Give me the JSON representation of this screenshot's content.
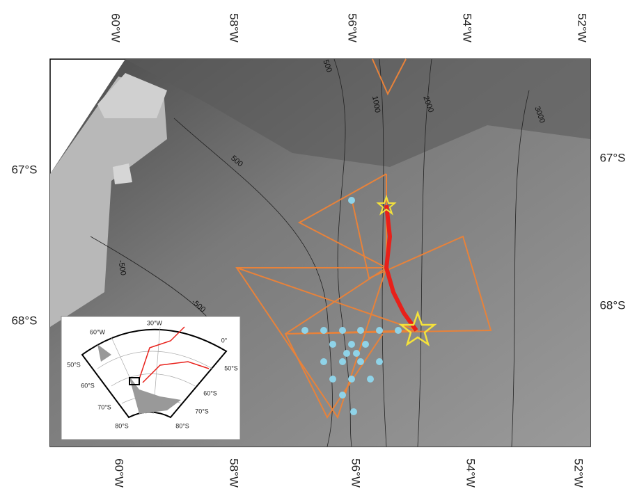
{
  "map": {
    "lon_labels_top": [
      "60°W",
      "58°W",
      "56°W",
      "54°W",
      "52°W"
    ],
    "lon_labels_bottom": [
      "60°W",
      "58°W",
      "56°W",
      "54°W",
      "52°W"
    ],
    "lat_labels_left": [
      "67°S",
      "68°S"
    ],
    "lat_labels_right": [
      "67°S",
      "68°S"
    ],
    "contour_labels": [
      "500",
      "1000",
      "2000",
      "3000",
      "500",
      "-500",
      "-500"
    ],
    "inset": {
      "labels": [
        "60°W",
        "30°W",
        "0°",
        "50°S",
        "50°S",
        "60°S",
        "60°S",
        "70°S",
        "70°S",
        "80°S",
        "80°S"
      ]
    }
  }
}
